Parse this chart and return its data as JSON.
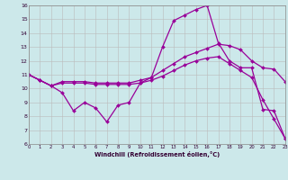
{
  "xlabel": "Windchill (Refroidissement éolien,°C)",
  "xlim": [
    0,
    23
  ],
  "ylim": [
    6,
    16
  ],
  "xticks": [
    0,
    1,
    2,
    3,
    4,
    5,
    6,
    7,
    8,
    9,
    10,
    11,
    12,
    13,
    14,
    15,
    16,
    17,
    18,
    19,
    20,
    21,
    22,
    23
  ],
  "yticks": [
    6,
    7,
    8,
    9,
    10,
    11,
    12,
    13,
    14,
    15,
    16
  ],
  "background_color": "#cce8ea",
  "line_color": "#990099",
  "grid_color": "#bbbbbb",
  "curve1_x": [
    0,
    1,
    2,
    3,
    4,
    5,
    6,
    7,
    8,
    9,
    10,
    11,
    12,
    13,
    14,
    15,
    16,
    17,
    18,
    19,
    20,
    21,
    22,
    23
  ],
  "curve1_y": [
    11.0,
    10.6,
    10.2,
    9.7,
    8.4,
    9.0,
    8.6,
    7.6,
    8.8,
    9.0,
    10.4,
    10.8,
    13.0,
    14.9,
    15.3,
    15.7,
    16.0,
    13.3,
    12.0,
    11.5,
    11.5,
    8.5,
    8.4,
    6.4
  ],
  "curve2_x": [
    0,
    1,
    2,
    3,
    4,
    5,
    6,
    7,
    8,
    9,
    10,
    11,
    12,
    13,
    14,
    15,
    16,
    17,
    18,
    19,
    20,
    21,
    22,
    23
  ],
  "curve2_y": [
    11.0,
    10.6,
    10.2,
    10.5,
    10.5,
    10.5,
    10.4,
    10.4,
    10.4,
    10.4,
    10.6,
    10.8,
    11.3,
    11.8,
    12.3,
    12.6,
    12.9,
    13.2,
    13.1,
    12.8,
    12.0,
    11.5,
    11.4,
    10.5
  ],
  "curve3_x": [
    0,
    1,
    2,
    3,
    4,
    5,
    6,
    7,
    8,
    9,
    10,
    11,
    12,
    13,
    14,
    15,
    16,
    17,
    18,
    19,
    20,
    21,
    22,
    23
  ],
  "curve3_y": [
    11.0,
    10.6,
    10.2,
    10.4,
    10.4,
    10.4,
    10.3,
    10.3,
    10.3,
    10.3,
    10.4,
    10.6,
    10.9,
    11.3,
    11.7,
    12.0,
    12.2,
    12.3,
    11.8,
    11.3,
    10.8,
    9.2,
    7.8,
    6.4
  ]
}
